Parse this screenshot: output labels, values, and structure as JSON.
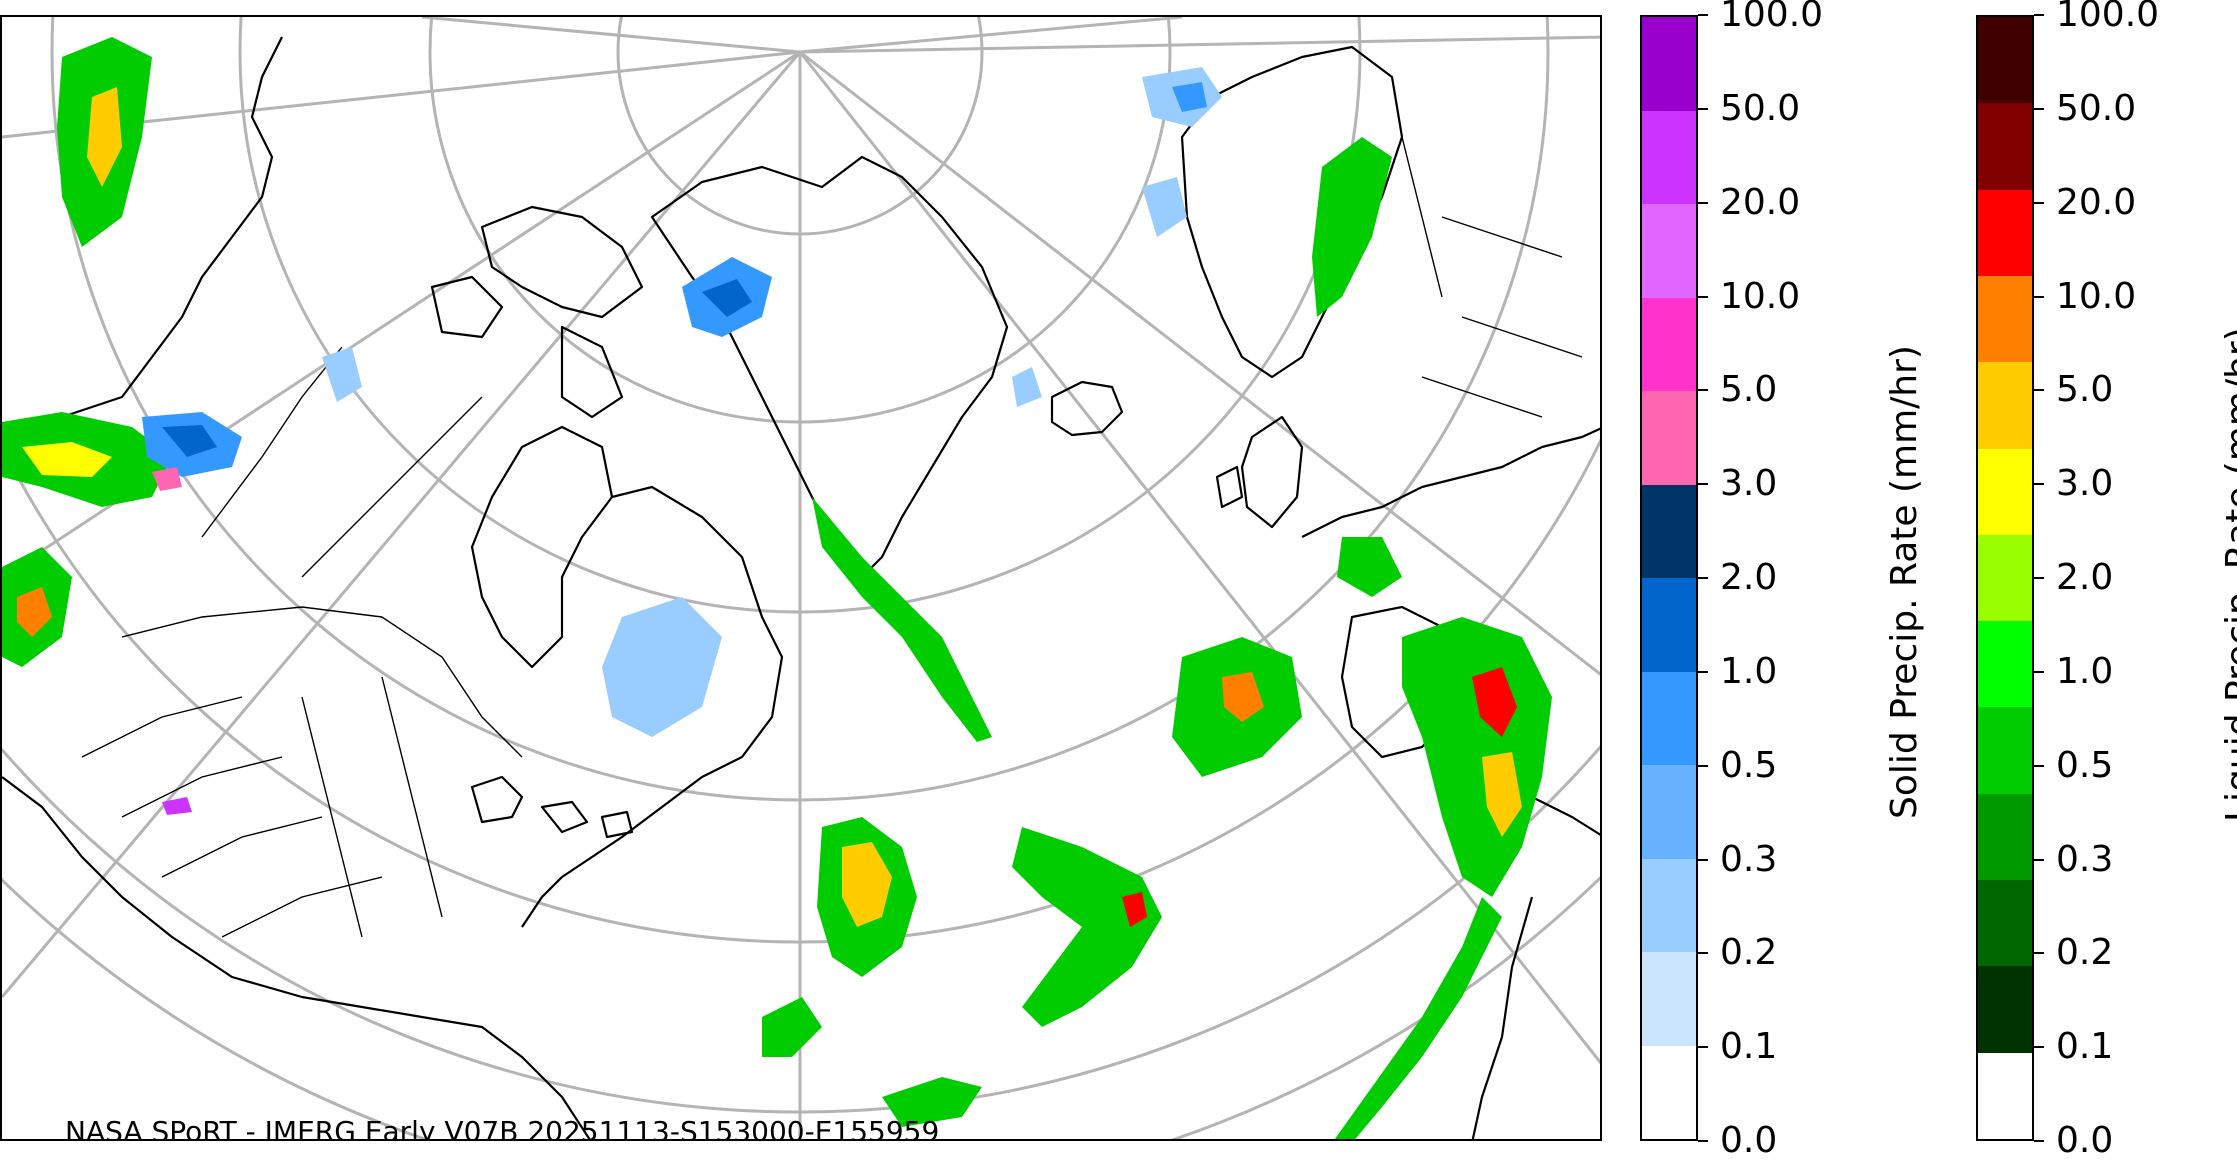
{
  "map": {
    "credit": "NASA SPoRT - IMERG Early V07B 20251113-S153000-E155959",
    "projection": "north polar stereographic",
    "graticule_color": "#b4b4b4",
    "coastline_color": "#000000"
  },
  "solid_colorbar": {
    "label": "Solid Precip. Rate (mm/hr)",
    "ticks": [
      "0.0",
      "0.1",
      "0.2",
      "0.3",
      "0.5",
      "1.0",
      "2.0",
      "3.0",
      "5.0",
      "10.0",
      "20.0",
      "50.0",
      "100.0"
    ],
    "colors": [
      "#ffffff",
      "#cce5ff",
      "#99ccff",
      "#66b2ff",
      "#3399ff",
      "#0066cc",
      "#003366",
      "#ff66b2",
      "#ff33cc",
      "#e066ff",
      "#cc33ff",
      "#9900cc"
    ]
  },
  "liquid_colorbar": {
    "label": "Liquid Precip. Rate (mm/hr)",
    "ticks": [
      "0.0",
      "0.1",
      "0.2",
      "0.3",
      "0.5",
      "1.0",
      "2.0",
      "3.0",
      "5.0",
      "10.0",
      "20.0",
      "50.0",
      "100.0"
    ],
    "colors": [
      "#ffffff",
      "#003300",
      "#006600",
      "#009900",
      "#00cc00",
      "#00ff00",
      "#99ff00",
      "#ffff00",
      "#ffcc00",
      "#ff8000",
      "#ff0000",
      "#800000",
      "#400000"
    ]
  }
}
